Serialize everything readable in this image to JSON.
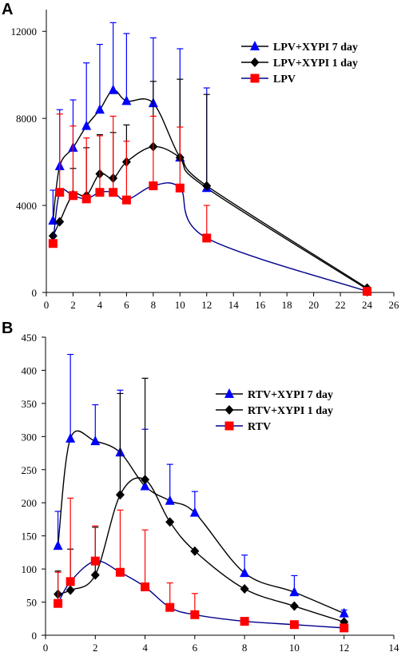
{
  "chart_data": [
    {
      "panel": "A",
      "type": "line",
      "xlim": [
        0,
        26
      ],
      "ylim": [
        0,
        13000
      ],
      "xticks": [
        0,
        2,
        4,
        6,
        8,
        10,
        12,
        14,
        16,
        18,
        20,
        22,
        24,
        26
      ],
      "yticks": [
        0,
        4000,
        8000,
        12000
      ],
      "legend_position": "top-right",
      "grid": false,
      "series": [
        {
          "name": "LPV+XYPI 7 day",
          "color": "#0000ff",
          "line_color": "#000000",
          "marker": "triangle",
          "points": [
            {
              "x": 0.5,
              "y": 3300,
              "err": 1400
            },
            {
              "x": 1,
              "y": 5800,
              "err": 2600
            },
            {
              "x": 2,
              "y": 6650,
              "err": 2200
            },
            {
              "x": 3,
              "y": 7650,
              "err": 2900
            },
            {
              "x": 4,
              "y": 8400,
              "err": 3000
            },
            {
              "x": 5,
              "y": 9300,
              "err": 3100
            },
            {
              "x": 6,
              "y": 8800,
              "err": 3100
            },
            {
              "x": 8,
              "y": 8700,
              "err": 3000
            },
            {
              "x": 10,
              "y": 6200,
              "err": 5000
            },
            {
              "x": 12,
              "y": 4800,
              "err": 4600
            },
            {
              "x": 24,
              "y": 150,
              "err": 0
            }
          ]
        },
        {
          "name": "LPV+XYPI 1 day",
          "color": "#000000",
          "line_color": "#000000",
          "marker": "diamond",
          "points": [
            {
              "x": 0.5,
              "y": 2600,
              "err": 0
            },
            {
              "x": 1,
              "y": 3250,
              "err": 0
            },
            {
              "x": 2,
              "y": 4500,
              "err": 1200
            },
            {
              "x": 3,
              "y": 4450,
              "err": 2200
            },
            {
              "x": 4,
              "y": 5450,
              "err": 1800
            },
            {
              "x": 5,
              "y": 5250,
              "err": 2100
            },
            {
              "x": 6,
              "y": 6000,
              "err": 1700
            },
            {
              "x": 8,
              "y": 6700,
              "err": 3000
            },
            {
              "x": 10,
              "y": 6200,
              "err": 3600
            },
            {
              "x": 12,
              "y": 4900,
              "err": 4200
            },
            {
              "x": 24,
              "y": 200,
              "err": 0
            }
          ]
        },
        {
          "name": "LPV",
          "color": "#ff0000",
          "line_color": "#00008b",
          "marker": "square",
          "points": [
            {
              "x": 0.5,
              "y": 2250,
              "err": 0
            },
            {
              "x": 1,
              "y": 4600,
              "err": 3600
            },
            {
              "x": 2,
              "y": 4450,
              "err": 3200
            },
            {
              "x": 3,
              "y": 4300,
              "err": 2800
            },
            {
              "x": 4,
              "y": 4600,
              "err": 2600
            },
            {
              "x": 5,
              "y": 4600,
              "err": 3500
            },
            {
              "x": 6,
              "y": 4250,
              "err": 2700
            },
            {
              "x": 8,
              "y": 4900,
              "err": 3200
            },
            {
              "x": 10,
              "y": 4800,
              "err": 2800
            },
            {
              "x": 12,
              "y": 2500,
              "err": 1500
            },
            {
              "x": 24,
              "y": 50,
              "err": 0
            }
          ]
        }
      ]
    },
    {
      "panel": "B",
      "type": "line",
      "xlim": [
        0,
        14
      ],
      "ylim": [
        0,
        450
      ],
      "xticks": [
        0,
        2,
        4,
        6,
        8,
        10,
        12,
        14
      ],
      "yticks": [
        0,
        50,
        100,
        150,
        200,
        250,
        300,
        350,
        400,
        450
      ],
      "legend_position": "top-right",
      "grid": false,
      "series": [
        {
          "name": "RTV+XYPI 7 day",
          "color": "#0000ff",
          "line_color": "#000000",
          "marker": "triangle",
          "points": [
            {
              "x": 0.5,
              "y": 135,
              "err": 52
            },
            {
              "x": 1,
              "y": 297,
              "err": 127
            },
            {
              "x": 2,
              "y": 293,
              "err": 55
            },
            {
              "x": 3,
              "y": 276,
              "err": 94
            },
            {
              "x": 4,
              "y": 225,
              "err": 86
            },
            {
              "x": 5,
              "y": 203,
              "err": 55
            },
            {
              "x": 6,
              "y": 185,
              "err": 32
            },
            {
              "x": 8,
              "y": 94,
              "err": 27
            },
            {
              "x": 10,
              "y": 65,
              "err": 25
            },
            {
              "x": 12,
              "y": 33,
              "err": 5
            }
          ]
        },
        {
          "name": "RTV+XYPI 1 day",
          "color": "#000000",
          "line_color": "#000000",
          "marker": "diamond",
          "points": [
            {
              "x": 0.5,
              "y": 62,
              "err": 35
            },
            {
              "x": 1,
              "y": 68,
              "err": 62
            },
            {
              "x": 2,
              "y": 91,
              "err": 72
            },
            {
              "x": 3,
              "y": 212,
              "err": 153
            },
            {
              "x": 4,
              "y": 235,
              "err": 153
            },
            {
              "x": 5,
              "y": 171,
              "err": 0
            },
            {
              "x": 6,
              "y": 127,
              "err": 0
            },
            {
              "x": 8,
              "y": 70,
              "err": 0
            },
            {
              "x": 10,
              "y": 44,
              "err": 0
            },
            {
              "x": 12,
              "y": 20,
              "err": 0
            }
          ]
        },
        {
          "name": "RTV",
          "color": "#ff0000",
          "line_color": "#00008b",
          "marker": "square",
          "points": [
            {
              "x": 0.5,
              "y": 48,
              "err": 47
            },
            {
              "x": 1,
              "y": 81,
              "err": 126
            },
            {
              "x": 2,
              "y": 112,
              "err": 53
            },
            {
              "x": 3,
              "y": 95,
              "err": 94
            },
            {
              "x": 4,
              "y": 73,
              "err": 86
            },
            {
              "x": 5,
              "y": 42,
              "err": 37
            },
            {
              "x": 6,
              "y": 31,
              "err": 32
            },
            {
              "x": 8,
              "y": 21,
              "err": 0
            },
            {
              "x": 10,
              "y": 16,
              "err": 0
            },
            {
              "x": 12,
              "y": 11,
              "err": 0
            }
          ]
        }
      ]
    }
  ]
}
